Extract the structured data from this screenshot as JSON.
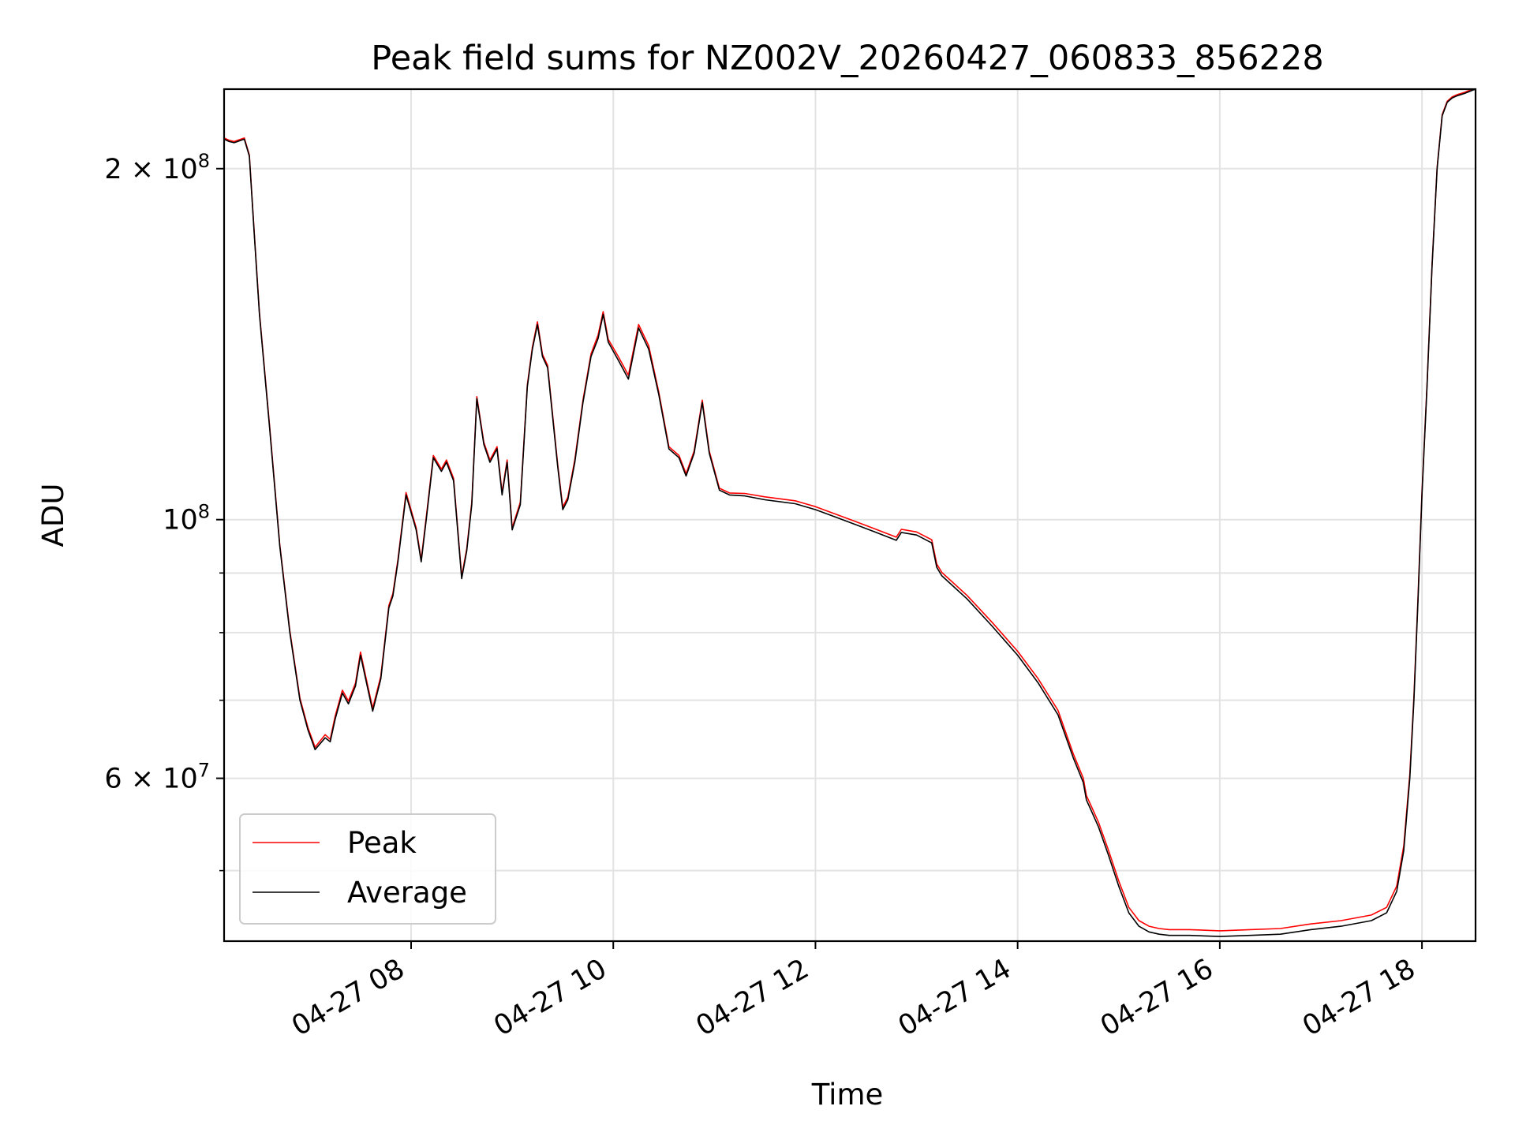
{
  "chart_data": {
    "type": "line",
    "title": "Peak field sums for NZ002V_20260427_060833_856228",
    "xlabel": "Time",
    "ylabel": "ADU",
    "yscale": "log",
    "xlim_hours": [
      6.15,
      18.53
    ],
    "ylim": [
      43500000,
      234000000
    ],
    "x_ticks": [
      {
        "value": 8,
        "label": "04-27 08"
      },
      {
        "value": 10,
        "label": "04-27 10"
      },
      {
        "value": 12,
        "label": "04-27 12"
      },
      {
        "value": 14,
        "label": "04-27 14"
      },
      {
        "value": 16,
        "label": "04-27 16"
      },
      {
        "value": 18,
        "label": "04-27 18"
      }
    ],
    "y_major_ticks": [
      {
        "value": 200000000,
        "mantissa": "2",
        "exponent": "8"
      },
      {
        "value": 100000000,
        "mantissa": "",
        "exponent": "8"
      },
      {
        "value": 60000000,
        "mantissa": "6",
        "exponent": "7"
      }
    ],
    "y_minor_ticks": [
      50000000,
      70000000,
      80000000,
      90000000
    ],
    "legend_position": "lower-left",
    "series": [
      {
        "name": "Peak",
        "color": "#ff0000"
      },
      {
        "name": "Average",
        "color": "#000000"
      }
    ],
    "x_hours": [
      6.15,
      6.2,
      6.25,
      6.35,
      6.4,
      6.45,
      6.5,
      6.6,
      6.7,
      6.8,
      6.9,
      6.98,
      7.05,
      7.15,
      7.2,
      7.25,
      7.32,
      7.38,
      7.45,
      7.5,
      7.55,
      7.62,
      7.7,
      7.78,
      7.82,
      7.87,
      7.95,
      8.05,
      8.1,
      8.15,
      8.22,
      8.3,
      8.35,
      8.42,
      8.5,
      8.55,
      8.6,
      8.65,
      8.72,
      8.78,
      8.85,
      8.9,
      8.95,
      9.0,
      9.08,
      9.15,
      9.2,
      9.25,
      9.3,
      9.35,
      9.45,
      9.5,
      9.55,
      9.62,
      9.7,
      9.78,
      9.85,
      9.9,
      9.95,
      10.05,
      10.15,
      10.25,
      10.35,
      10.45,
      10.55,
      10.65,
      10.72,
      10.8,
      10.88,
      10.95,
      11.05,
      11.15,
      11.3,
      11.5,
      11.8,
      12.0,
      12.2,
      12.4,
      12.6,
      12.8,
      12.85,
      13.0,
      13.15,
      13.2,
      13.25,
      13.5,
      13.75,
      14.0,
      14.2,
      14.4,
      14.55,
      14.65,
      14.68,
      14.72,
      14.8,
      14.9,
      15.0,
      15.1,
      15.2,
      15.3,
      15.4,
      15.5,
      15.7,
      16.0,
      16.3,
      16.6,
      16.9,
      17.2,
      17.5,
      17.65,
      17.75,
      17.82,
      17.88,
      17.92,
      17.96,
      18.0,
      18.05,
      18.1,
      18.15,
      18.2,
      18.25,
      18.3,
      18.35,
      18.42,
      18.5,
      18.53
    ],
    "average": [
      212000000,
      211000000,
      210500000,
      212000000,
      205000000,
      175000000,
      150000000,
      120000000,
      95000000,
      80000000,
      70000000,
      66000000,
      63500000,
      65000000,
      64500000,
      67500000,
      71000000,
      69500000,
      72000000,
      76500000,
      73000000,
      68500000,
      73000000,
      84000000,
      86000000,
      92000000,
      105000000,
      98000000,
      92000000,
      100000000,
      113000000,
      110000000,
      112000000,
      108000000,
      89000000,
      94000000,
      103000000,
      127000000,
      116000000,
      112000000,
      115000000,
      105000000,
      112000000,
      98000000,
      103000000,
      130000000,
      140000000,
      147000000,
      138000000,
      135000000,
      111000000,
      102000000,
      104000000,
      112000000,
      126000000,
      138000000,
      143000000,
      150000000,
      142000000,
      137000000,
      132000000,
      146000000,
      140000000,
      128000000,
      115000000,
      113000000,
      109000000,
      114000000,
      126000000,
      114000000,
      106000000,
      105000000,
      104800000,
      104000000,
      103200000,
      102000000,
      100500000,
      99000000,
      97500000,
      96000000,
      97500000,
      97000000,
      95500000,
      91000000,
      89500000,
      85500000,
      81000000,
      76500000,
      72500000,
      68000000,
      62500000,
      59500000,
      57500000,
      56500000,
      54500000,
      51500000,
      48500000,
      46000000,
      44800000,
      44300000,
      44100000,
      44000000,
      44000000,
      43900000,
      44000000,
      44100000,
      44500000,
      44800000,
      45300000,
      46000000,
      48000000,
      52000000,
      60000000,
      70000000,
      85000000,
      105000000,
      130000000,
      165000000,
      200000000,
      222000000,
      228000000,
      230000000,
      231000000,
      232000000,
      233500000,
      234000000
    ],
    "peak": [
      212500000,
      211500000,
      211000000,
      212500000,
      205500000,
      175500000,
      150500000,
      120500000,
      95300000,
      80300000,
      70300000,
      66300000,
      63800000,
      65400000,
      64800000,
      67900000,
      71400000,
      69900000,
      72400000,
      77000000,
      73400000,
      68900000,
      73400000,
      84400000,
      86400000,
      92400000,
      105500000,
      98400000,
      92400000,
      100500000,
      113500000,
      110500000,
      112500000,
      108500000,
      89400000,
      94400000,
      103500000,
      127500000,
      116500000,
      112500000,
      115500000,
      105500000,
      112500000,
      98400000,
      103500000,
      130500000,
      140600000,
      147800000,
      138600000,
      135600000,
      111500000,
      102500000,
      104500000,
      112600000,
      126600000,
      138700000,
      144000000,
      150800000,
      142800000,
      138000000,
      133000000,
      147000000,
      141000000,
      128600000,
      115500000,
      113500000,
      109500000,
      114500000,
      126600000,
      114500000,
      106400000,
      105400000,
      105300000,
      104600000,
      103800000,
      102600000,
      101100000,
      99600000,
      98100000,
      96600000,
      98100000,
      97600000,
      96100000,
      91600000,
      90100000,
      86100000,
      81600000,
      77100000,
      73100000,
      68600000,
      63000000,
      60000000,
      58000000,
      57000000,
      55000000,
      52000000,
      49000000,
      46500000,
      45300000,
      44800000,
      44600000,
      44500000,
      44500000,
      44400000,
      44500000,
      44600000,
      45000000,
      45300000,
      45800000,
      46500000,
      48500000,
      52500000,
      60500000,
      70500000,
      85500000,
      105500000,
      130500000,
      165500000,
      200500000,
      222500000,
      228500000,
      230500000,
      231500000,
      232500000,
      234000000,
      234000000
    ]
  }
}
